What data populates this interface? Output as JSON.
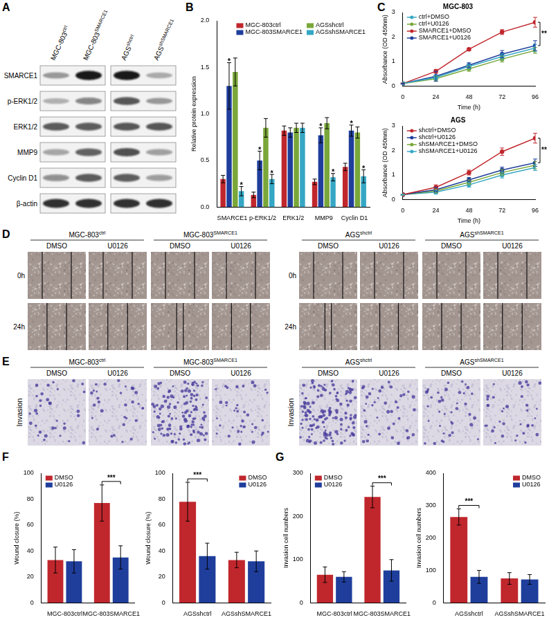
{
  "panel_labels": [
    "A",
    "B",
    "C",
    "D",
    "E",
    "F",
    "G"
  ],
  "blot": {
    "columns": [
      {
        "base": "MGC-803",
        "sup": "ctrl"
      },
      {
        "base": "MGC-803",
        "sup": "SMARCE1"
      },
      {
        "base": "AGS",
        "sup": "shctrl"
      },
      {
        "base": "AGS",
        "sup": "shSMARCE1"
      }
    ],
    "rows": [
      "SMARCE1",
      "p-ERK1/2",
      "ERK1/2",
      "MMP9",
      "Cyclin D1",
      "β-actin"
    ]
  },
  "wound_healing": {
    "rows": [
      "0h",
      "24h"
    ],
    "groups": [
      {
        "base": "MGC-803",
        "sup": "ctrl",
        "treatments": [
          "DMSO",
          "U0126"
        ]
      },
      {
        "base": "MGC-803",
        "sup": "SMARCE1",
        "treatments": [
          "DMSO",
          "U0126"
        ]
      },
      {
        "base": "AGS",
        "sup": "shctrl",
        "treatments": [
          "DMSO",
          "U0126"
        ]
      },
      {
        "base": "AGS",
        "sup": "shSMARCE1",
        "treatments": [
          "DMSO",
          "U0126"
        ]
      }
    ]
  },
  "invasion": {
    "row": "Invasion",
    "groups": [
      {
        "base": "MGC-803",
        "sup": "ctrl",
        "treatments": [
          "DMSO",
          "U0126"
        ]
      },
      {
        "base": "MGC-803",
        "sup": "SMARCE1",
        "treatments": [
          "DMSO",
          "U0126"
        ]
      },
      {
        "base": "AGS",
        "sup": "shctrl",
        "treatments": [
          "DMSO",
          "U0126"
        ]
      },
      {
        "base": "AGS",
        "sup": "shSMARCE1",
        "treatments": [
          "DMSO",
          "U0126"
        ]
      }
    ]
  },
  "chart_data": [
    {
      "type": "bar",
      "y_label": "Relative protein expression",
      "categories": [
        "SMARCE1",
        "p-ERK1/2",
        "ERK1/2",
        "MMP9",
        "Cyclin D1"
      ],
      "series": [
        {
          "name": "MGC-803ctrl",
          "color": "#c0272d",
          "values": [
            0.3,
            0.13,
            0.82,
            0.27,
            0.43
          ],
          "errors": [
            0.04,
            0.03,
            0.05,
            0.03,
            0.04
          ]
        },
        {
          "name": "MGC-803SMARCE1",
          "color": "#1f3e9c",
          "values": [
            1.3,
            0.5,
            0.8,
            0.77,
            0.82
          ],
          "errors": [
            0.25,
            0.1,
            0.05,
            0.08,
            0.06
          ],
          "marks": [
            "*",
            "*",
            null,
            "*",
            "*"
          ]
        },
        {
          "name": "AGSshctrl",
          "color": "#7aa73a",
          "values": [
            1.45,
            0.85,
            0.85,
            0.9,
            0.8
          ],
          "errors": [
            0.15,
            0.1,
            0.05,
            0.06,
            0.06
          ]
        },
        {
          "name": "AGSshSMARCE1",
          "color": "#35a7c4",
          "values": [
            0.17,
            0.3,
            0.85,
            0.32,
            0.33
          ],
          "errors": [
            0.05,
            0.05,
            0.05,
            0.04,
            0.07
          ],
          "marks": [
            "*",
            "*",
            null,
            "*",
            "*"
          ]
        }
      ],
      "ylim": [
        0,
        2
      ],
      "yticks": [
        {
          "value": 0,
          "label": "0.0"
        },
        {
          "value": 0.5,
          "label": "0.5"
        },
        {
          "value": 1,
          "label": "1.0"
        },
        {
          "value": 1.5,
          "label": "1.5"
        },
        {
          "value": 2,
          "label": "2.0"
        }
      ],
      "grid": false,
      "legend": "upper right"
    },
    {
      "type": "line",
      "title": "MGC-803",
      "x_label": "Time (h)",
      "y_label": "Absorbance (OD 450nm)",
      "x": [
        0,
        24,
        48,
        72,
        96
      ],
      "series": [
        {
          "name": "ctrl+DMSO",
          "color": "#35a7c4",
          "marker": "circle",
          "line_style": "solid",
          "values": [
            0.1,
            0.35,
            0.8,
            1.2,
            1.55
          ],
          "errors": [
            0.02,
            0.1,
            0.1,
            0.12,
            0.15
          ]
        },
        {
          "name": "ctrl+U0126",
          "color": "#7aa73a",
          "marker": "circle",
          "line_style": "solid",
          "values": [
            0.1,
            0.3,
            0.7,
            1.1,
            1.45
          ],
          "errors": [
            0.02,
            0.1,
            0.1,
            0.12,
            0.12
          ]
        },
        {
          "name": "SMARCE1+DMSO",
          "color": "#c0272d",
          "marker": "circle",
          "line_style": "solid",
          "values": [
            0.1,
            0.6,
            1.5,
            2.2,
            2.6
          ],
          "errors": [
            0.02,
            0.08,
            0.05,
            0.1,
            0.2
          ]
        },
        {
          "name": "SMARCE1+U0126",
          "color": "#1f3e9c",
          "marker": "circle",
          "line_style": "solid",
          "values": [
            0.1,
            0.4,
            0.85,
            1.3,
            1.65
          ],
          "errors": [
            0.02,
            0.2,
            0.1,
            0.15,
            0.2
          ]
        }
      ],
      "xlim": [
        0,
        96
      ],
      "xticks": [
        0,
        24,
        48,
        72,
        96
      ],
      "ylim": [
        0,
        3
      ],
      "yticks": [
        0,
        1,
        2,
        3
      ],
      "annotations": [
        {
          "text": "**",
          "x": 96,
          "series": [
            "SMARCE1+DMSO",
            "SMARCE1+U0126"
          ]
        }
      ],
      "grid": false,
      "legend": "upper left"
    },
    {
      "type": "line",
      "title": "AGS",
      "x_label": "Time (h)",
      "y_label": "Absorbance (OD 450nm)",
      "x": [
        0,
        24,
        48,
        72,
        96
      ],
      "series": [
        {
          "name": "shctrl+DMSO",
          "color": "#c0272d",
          "marker": "circle",
          "line_style": "solid",
          "values": [
            0.2,
            0.5,
            1.1,
            1.95,
            2.5
          ],
          "errors": [
            0.02,
            0.1,
            0.1,
            0.15,
            0.2
          ]
        },
        {
          "name": "shctrl+U0126",
          "color": "#1f3e9c",
          "marker": "circle",
          "line_style": "solid",
          "values": [
            0.2,
            0.4,
            0.8,
            1.2,
            1.5
          ],
          "errors": [
            0.02,
            0.1,
            0.1,
            0.12,
            0.15
          ]
        },
        {
          "name": "shSMARCE1+DMSO",
          "color": "#7aa73a",
          "marker": "circle",
          "line_style": "solid",
          "values": [
            0.2,
            0.35,
            0.7,
            1.1,
            1.4
          ],
          "errors": [
            0.02,
            0.08,
            0.1,
            0.12,
            0.15
          ]
        },
        {
          "name": "shSMARCE1+U0126",
          "color": "#35a7c4",
          "marker": "circle",
          "line_style": "solid",
          "values": [
            0.2,
            0.3,
            0.6,
            1.0,
            1.3
          ],
          "errors": [
            0.02,
            0.08,
            0.1,
            0.12,
            0.12
          ]
        }
      ],
      "xlim": [
        0,
        96
      ],
      "xticks": [
        0,
        24,
        48,
        72,
        96
      ],
      "ylim": [
        0,
        3
      ],
      "yticks": [
        0,
        1,
        2,
        3
      ],
      "annotations": [
        {
          "text": "**",
          "x": 96,
          "series": [
            "shctrl+DMSO",
            "shctrl+U0126"
          ]
        }
      ],
      "grid": false,
      "legend": "upper left"
    },
    {
      "type": "bar",
      "y_label": "Wound closure (%)",
      "categories": [
        "MGC-803ctrl",
        "MGC-803SMARCE1"
      ],
      "series": [
        {
          "name": "DMSO",
          "color": "#c0272d",
          "values": [
            33,
            77
          ],
          "errors": [
            10,
            14
          ]
        },
        {
          "name": "U0126",
          "color": "#1f3e9c",
          "values": [
            32,
            35
          ],
          "errors": [
            9,
            9
          ]
        }
      ],
      "ylim": [
        0,
        100
      ],
      "yticks": [
        0,
        20,
        40,
        60,
        80,
        100
      ],
      "annotations": [
        {
          "text": "***",
          "category": "MGC-803SMARCE1"
        }
      ],
      "grid": false,
      "legend": "upper left"
    },
    {
      "type": "bar",
      "y_label": "Wound closure (%)",
      "categories": [
        "AGSshctrl",
        "AGSshSMARCE1"
      ],
      "series": [
        {
          "name": "DMSO",
          "color": "#c0272d",
          "values": [
            78,
            33
          ],
          "errors": [
            15,
            6
          ]
        },
        {
          "name": "U0126",
          "color": "#1f3e9c",
          "values": [
            36,
            32
          ],
          "errors": [
            10,
            8
          ]
        }
      ],
      "ylim": [
        0,
        100
      ],
      "yticks": [
        0,
        20,
        40,
        60,
        80,
        100
      ],
      "annotations": [
        {
          "text": "***",
          "category": "AGSshctrl"
        }
      ],
      "grid": false,
      "legend": "upper right"
    },
    {
      "type": "bar",
      "y_label": "Invasion cell numbers",
      "categories": [
        "MGC-803ctrl",
        "MGC-803SMARCE1"
      ],
      "series": [
        {
          "name": "DMSO",
          "color": "#c0272d",
          "values": [
            65,
            245
          ],
          "errors": [
            18,
            25
          ]
        },
        {
          "name": "U0126",
          "color": "#1f3e9c",
          "values": [
            60,
            75
          ],
          "errors": [
            12,
            25
          ]
        }
      ],
      "ylim": [
        0,
        300
      ],
      "yticks": [
        0,
        100,
        200,
        300
      ],
      "annotations": [
        {
          "text": "***",
          "category": "MGC-803SMARCE1"
        }
      ],
      "grid": false,
      "legend": "upper left"
    },
    {
      "type": "bar",
      "y_label": "Invasion cell numbers",
      "categories": [
        "AGSshctrl",
        "AGSshSMARCE1"
      ],
      "series": [
        {
          "name": "DMSO",
          "color": "#c0272d",
          "values": [
            265,
            75
          ],
          "errors": [
            25,
            18
          ]
        },
        {
          "name": "U0126",
          "color": "#1f3e9c",
          "values": [
            80,
            72
          ],
          "errors": [
            20,
            15
          ]
        }
      ],
      "ylim": [
        0,
        400
      ],
      "yticks": [
        0,
        100,
        200,
        300,
        400
      ],
      "annotations": [
        {
          "text": "***",
          "category": "AGSshctrl"
        }
      ],
      "grid": false,
      "legend": "upper right"
    }
  ]
}
